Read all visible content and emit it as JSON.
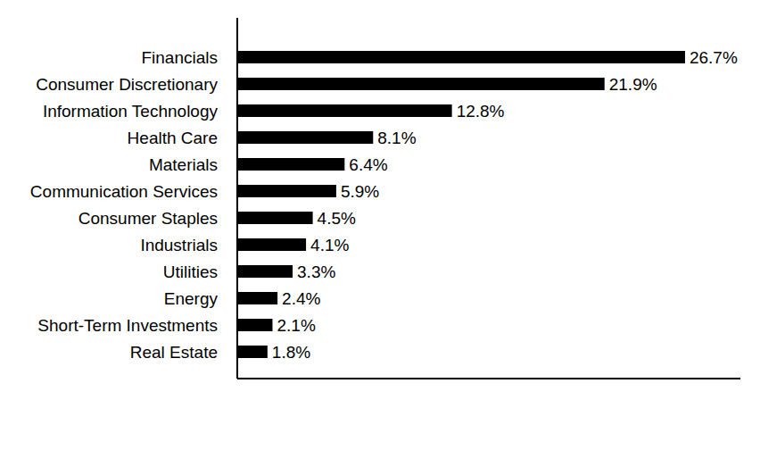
{
  "chart_data": {
    "type": "bar",
    "orientation": "horizontal",
    "categories": [
      "Financials",
      "Consumer Discretionary",
      "Information Technology",
      "Health Care",
      "Materials",
      "Communication Services",
      "Consumer Staples",
      "Industrials",
      "Utilities",
      "Energy",
      "Short-Term Investments",
      "Real Estate"
    ],
    "values": [
      26.7,
      21.9,
      12.8,
      8.1,
      6.4,
      5.9,
      4.5,
      4.1,
      3.3,
      2.4,
      2.1,
      1.8
    ],
    "value_labels": [
      "26.7%",
      "21.9%",
      "12.8%",
      "8.1%",
      "6.4%",
      "5.9%",
      "4.5%",
      "4.1%",
      "3.3%",
      "2.4%",
      "2.1%",
      "1.8%"
    ],
    "color": "#000000",
    "xlim": [
      0,
      30
    ],
    "data_labels": true,
    "tick_labels": "y",
    "grid": false
  }
}
